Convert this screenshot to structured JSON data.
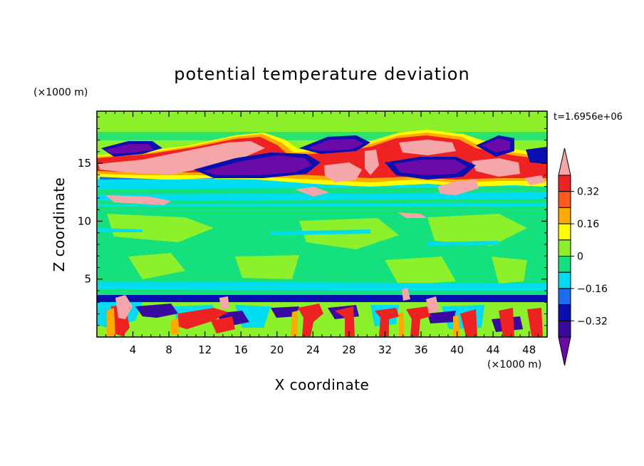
{
  "chart_data": {
    "type": "heatmap",
    "title": "potential temperature deviation",
    "xlabel": "X coordinate",
    "ylabel": "Z coordinate",
    "x_unit": "(×1000 m)",
    "y_unit": "(×1000 m)",
    "time_label": "t=1.6956e+06",
    "xlim": [
      0,
      50
    ],
    "ylim": [
      0,
      19.5
    ],
    "x_ticks": [
      "4",
      "8",
      "12",
      "16",
      "20",
      "24",
      "28",
      "32",
      "36",
      "40",
      "44",
      "48"
    ],
    "y_ticks": [
      "5",
      "10",
      "15"
    ],
    "x_tick_values": [
      4,
      8,
      12,
      16,
      20,
      24,
      28,
      32,
      36,
      40,
      44,
      48
    ],
    "y_tick_values": [
      5,
      10,
      15
    ],
    "colorbar": {
      "labels": [
        "0.32",
        "0.16",
        "0",
        "−0.16",
        "−0.32"
      ],
      "label_values": [
        0.32,
        0.16,
        0,
        -0.16,
        -0.32
      ],
      "levels": [
        -0.4,
        -0.32,
        -0.24,
        -0.16,
        -0.08,
        0,
        0.08,
        0.16,
        0.24,
        0.32,
        0.4
      ],
      "colors": [
        "#6a0aa8",
        "#3a0aa0",
        "#0a10b0",
        "#1a6cf0",
        "#00dcf0",
        "#14e07e",
        "#8cf02a",
        "#ffff00",
        "#ffaa00",
        "#ff5a1e",
        "#ee2222",
        "#f4a6a8"
      ]
    },
    "features": [
      {
        "name": "upper positive band",
        "x": [
          0,
          50
        ],
        "z": [
          13.5,
          17.5
        ],
        "value": 0.4
      },
      {
        "name": "upper negative cores",
        "x": [
          0,
          50
        ],
        "z": [
          14,
          17
        ],
        "value": -0.4
      },
      {
        "name": "weak negative layer",
        "x": [
          0,
          50
        ],
        "z": [
          11,
          13
        ],
        "value": -0.1
      },
      {
        "name": "near-neutral interior",
        "x": [
          0,
          50
        ],
        "z": [
          3.5,
          11
        ],
        "value": 0.05
      },
      {
        "name": "low-level plumes",
        "x": [
          0,
          50
        ],
        "z": [
          0,
          3.5
        ],
        "value": 0.4
      }
    ]
  }
}
